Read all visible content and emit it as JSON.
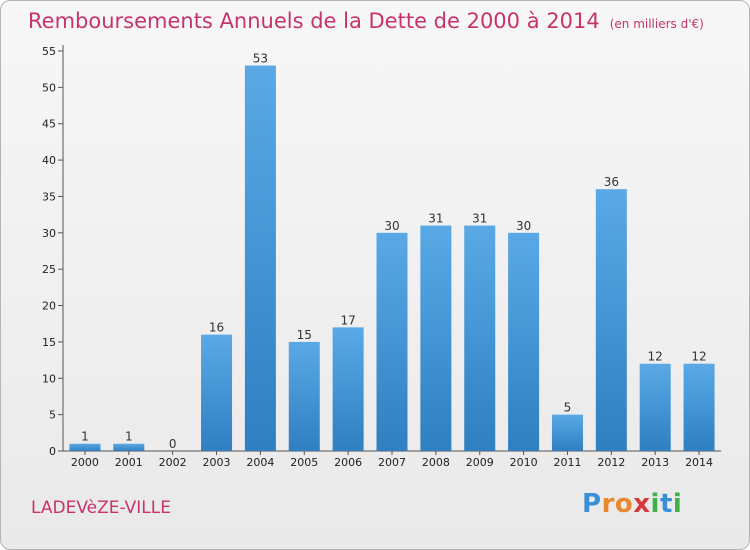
{
  "chart_data": {
    "type": "bar",
    "title": "Remboursements Annuels de la Dette de 2000 à 2014",
    "unit": "(en milliers d'€)",
    "categories": [
      "2000",
      "2001",
      "2002",
      "2003",
      "2004",
      "2005",
      "2006",
      "2007",
      "2008",
      "2009",
      "2010",
      "2011",
      "2012",
      "2013",
      "2014"
    ],
    "values": [
      1,
      1,
      0,
      16,
      53,
      15,
      17,
      30,
      31,
      31,
      30,
      5,
      36,
      12,
      12
    ],
    "ylim": [
      0,
      55
    ],
    "yticks": [
      0,
      5,
      10,
      15,
      20,
      25,
      30,
      35,
      40,
      45,
      50,
      55
    ],
    "grid": false,
    "colors": {
      "bar_top": "#5aa9e6",
      "bar_bottom": "#2f7fc1",
      "title": "#c8336c"
    }
  },
  "commune": "LADEVèZE-VILLE",
  "logo": {
    "letters": [
      {
        "char": "P",
        "color": "#3a8fd6"
      },
      {
        "char": "r",
        "color": "#e8872c"
      },
      {
        "char": "o",
        "color": "#e8872c"
      },
      {
        "char": "x",
        "color": "#d63a3a"
      },
      {
        "char": "i",
        "color": "#3fb04a"
      },
      {
        "char": "t",
        "color": "#3a8fd6"
      },
      {
        "char": "i",
        "color": "#3fb04a"
      }
    ]
  }
}
